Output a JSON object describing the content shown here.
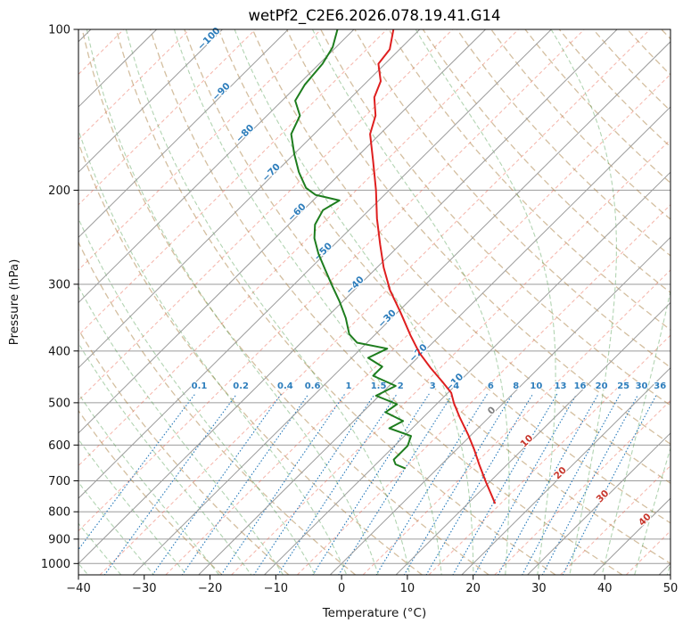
{
  "chart_data": {
    "type": "skewt_logp",
    "title": "wetPf2_C2E6.2026.078.19.41.G14",
    "xlabel": "Temperature (°C)",
    "ylabel": "Pressure (hPa)",
    "x_ticks": [
      -40,
      -30,
      -20,
      -10,
      0,
      10,
      20,
      30,
      40,
      50
    ],
    "y_ticks": [
      100,
      200,
      300,
      400,
      500,
      600,
      700,
      800,
      900,
      1000
    ],
    "xlim": [
      -40,
      50
    ],
    "plim": [
      100,
      1050
    ],
    "grid": true,
    "isotherms": {
      "min": -150,
      "max": 50,
      "step": 10,
      "minor_offset": 5
    },
    "isotherm_labels": [
      {
        "t": -100,
        "p": 105
      },
      {
        "t": -90,
        "p": 132
      },
      {
        "t": -80,
        "p": 158
      },
      {
        "t": -70,
        "p": 187
      },
      {
        "t": -60,
        "p": 222
      },
      {
        "t": -50,
        "p": 263
      },
      {
        "t": -40,
        "p": 304
      },
      {
        "t": -30,
        "p": 351
      },
      {
        "t": -20,
        "p": 407
      },
      {
        "t": -10,
        "p": 462
      },
      {
        "t": 0,
        "p": 522
      },
      {
        "t": 10,
        "p": 595
      },
      {
        "t": 20,
        "p": 683
      },
      {
        "t": 30,
        "p": 755
      },
      {
        "t": 40,
        "p": 835
      }
    ],
    "mixing_ratios": [
      0.1,
      0.2,
      0.4,
      0.6,
      1,
      1.5,
      2,
      3,
      4,
      6,
      8,
      10,
      13,
      16,
      20,
      25,
      30,
      36
    ],
    "mixing_label_pressure": 470,
    "mixing_line_top_pressure": 482,
    "dry_adiabats_theta_c": {
      "min": -20,
      "max": 200,
      "step": 10
    },
    "moist_adiabats_t0_c": {
      "min": -40,
      "max": 50,
      "step": 5
    },
    "colors": {
      "temperature": "#df1f1f",
      "dewpoint": "#1e7d1e",
      "isotherm_major": "#9b9b9b",
      "isotherm_minor": "rgba(235,105,85,0.50)",
      "isobar": "#9b9b9b",
      "dry_adiabat": "rgba(170,128,66,0.50)",
      "moist_adiabat": "rgba(62,148,62,0.40)",
      "mixing_line": "#2e7ebc",
      "label_negative": "#2e7ebc",
      "label_zero": "#808080",
      "label_positive": "#c8372d",
      "axis": "#000000"
    },
    "series": [
      {
        "name": "temperature",
        "points": [
          [
            100,
            -74
          ],
          [
            109,
            -71.5
          ],
          [
            116,
            -71
          ],
          [
            125,
            -68
          ],
          [
            134,
            -66.5
          ],
          [
            145,
            -63.5
          ],
          [
            157,
            -61.5
          ],
          [
            176,
            -57
          ],
          [
            200,
            -52
          ],
          [
            226,
            -47.5
          ],
          [
            253,
            -43
          ],
          [
            279,
            -39
          ],
          [
            308,
            -34.5
          ],
          [
            339,
            -29.5
          ],
          [
            374,
            -24.5
          ],
          [
            403,
            -20.5
          ],
          [
            430,
            -16.5
          ],
          [
            457,
            -12.5
          ],
          [
            479,
            -9.5
          ],
          [
            501,
            -7.5
          ],
          [
            532,
            -4.5
          ],
          [
            574,
            -0.5
          ],
          [
            612,
            2.7
          ],
          [
            652,
            5.7
          ],
          [
            703,
            9.4
          ],
          [
            746,
            12.4
          ],
          [
            770,
            14
          ]
        ]
      },
      {
        "name": "dewpoint",
        "points": [
          [
            100,
            -82.5
          ],
          [
            108,
            -80.5
          ],
          [
            116,
            -79.5
          ],
          [
            127,
            -79
          ],
          [
            136,
            -78
          ],
          [
            145,
            -75
          ],
          [
            157,
            -73.5
          ],
          [
            171,
            -70
          ],
          [
            185,
            -66.5
          ],
          [
            198,
            -63
          ],
          [
            204,
            -60.5
          ],
          [
            209,
            -56
          ],
          [
            218,
            -57
          ],
          [
            232,
            -56
          ],
          [
            246,
            -54
          ],
          [
            263,
            -51
          ],
          [
            282,
            -47.5
          ],
          [
            302,
            -44
          ],
          [
            323,
            -40.5
          ],
          [
            347,
            -37
          ],
          [
            372,
            -34
          ],
          [
            386,
            -31.5
          ],
          [
            396,
            -26
          ],
          [
            412,
            -27.5
          ],
          [
            428,
            -24
          ],
          [
            445,
            -24
          ],
          [
            465,
            -19
          ],
          [
            485,
            -20.5
          ],
          [
            503,
            -16
          ],
          [
            521,
            -16.5
          ],
          [
            541,
            -12.5
          ],
          [
            558,
            -13.5
          ],
          [
            577,
            -9
          ],
          [
            602,
            -8
          ],
          [
            620,
            -8
          ],
          [
            639,
            -8
          ],
          [
            652,
            -7
          ],
          [
            663,
            -5
          ]
        ]
      }
    ]
  }
}
